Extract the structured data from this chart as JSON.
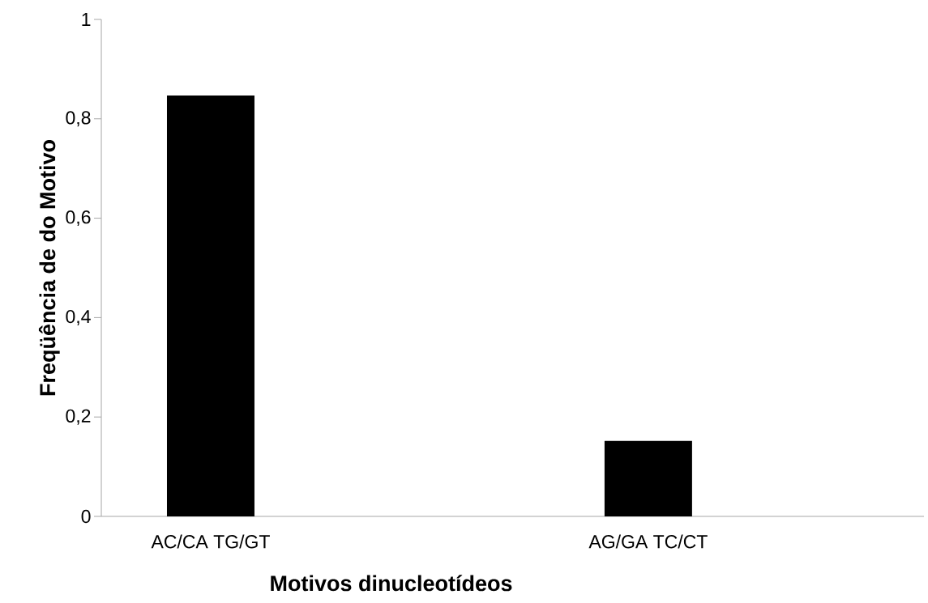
{
  "chart_data": {
    "type": "bar",
    "xlabel": "Motivos dinucleotídeos",
    "ylabel": "Freqüência de do Motivo",
    "categories": [
      "AC/CA TG/GT",
      null,
      "AG/GA TC/CT",
      null
    ],
    "values": [
      0.847,
      null,
      0.152,
      null
    ],
    "color": "#000000",
    "ylim": [
      0,
      1
    ],
    "yticks": [
      {
        "value": 0,
        "label": "0"
      },
      {
        "value": 0.2,
        "label": "0,2"
      },
      {
        "value": 0.4,
        "label": "0,4"
      },
      {
        "value": 0.6,
        "label": "0,6"
      },
      {
        "value": 0.8,
        "label": "0,8"
      },
      {
        "value": 1,
        "label": "1"
      }
    ],
    "grid": false
  }
}
